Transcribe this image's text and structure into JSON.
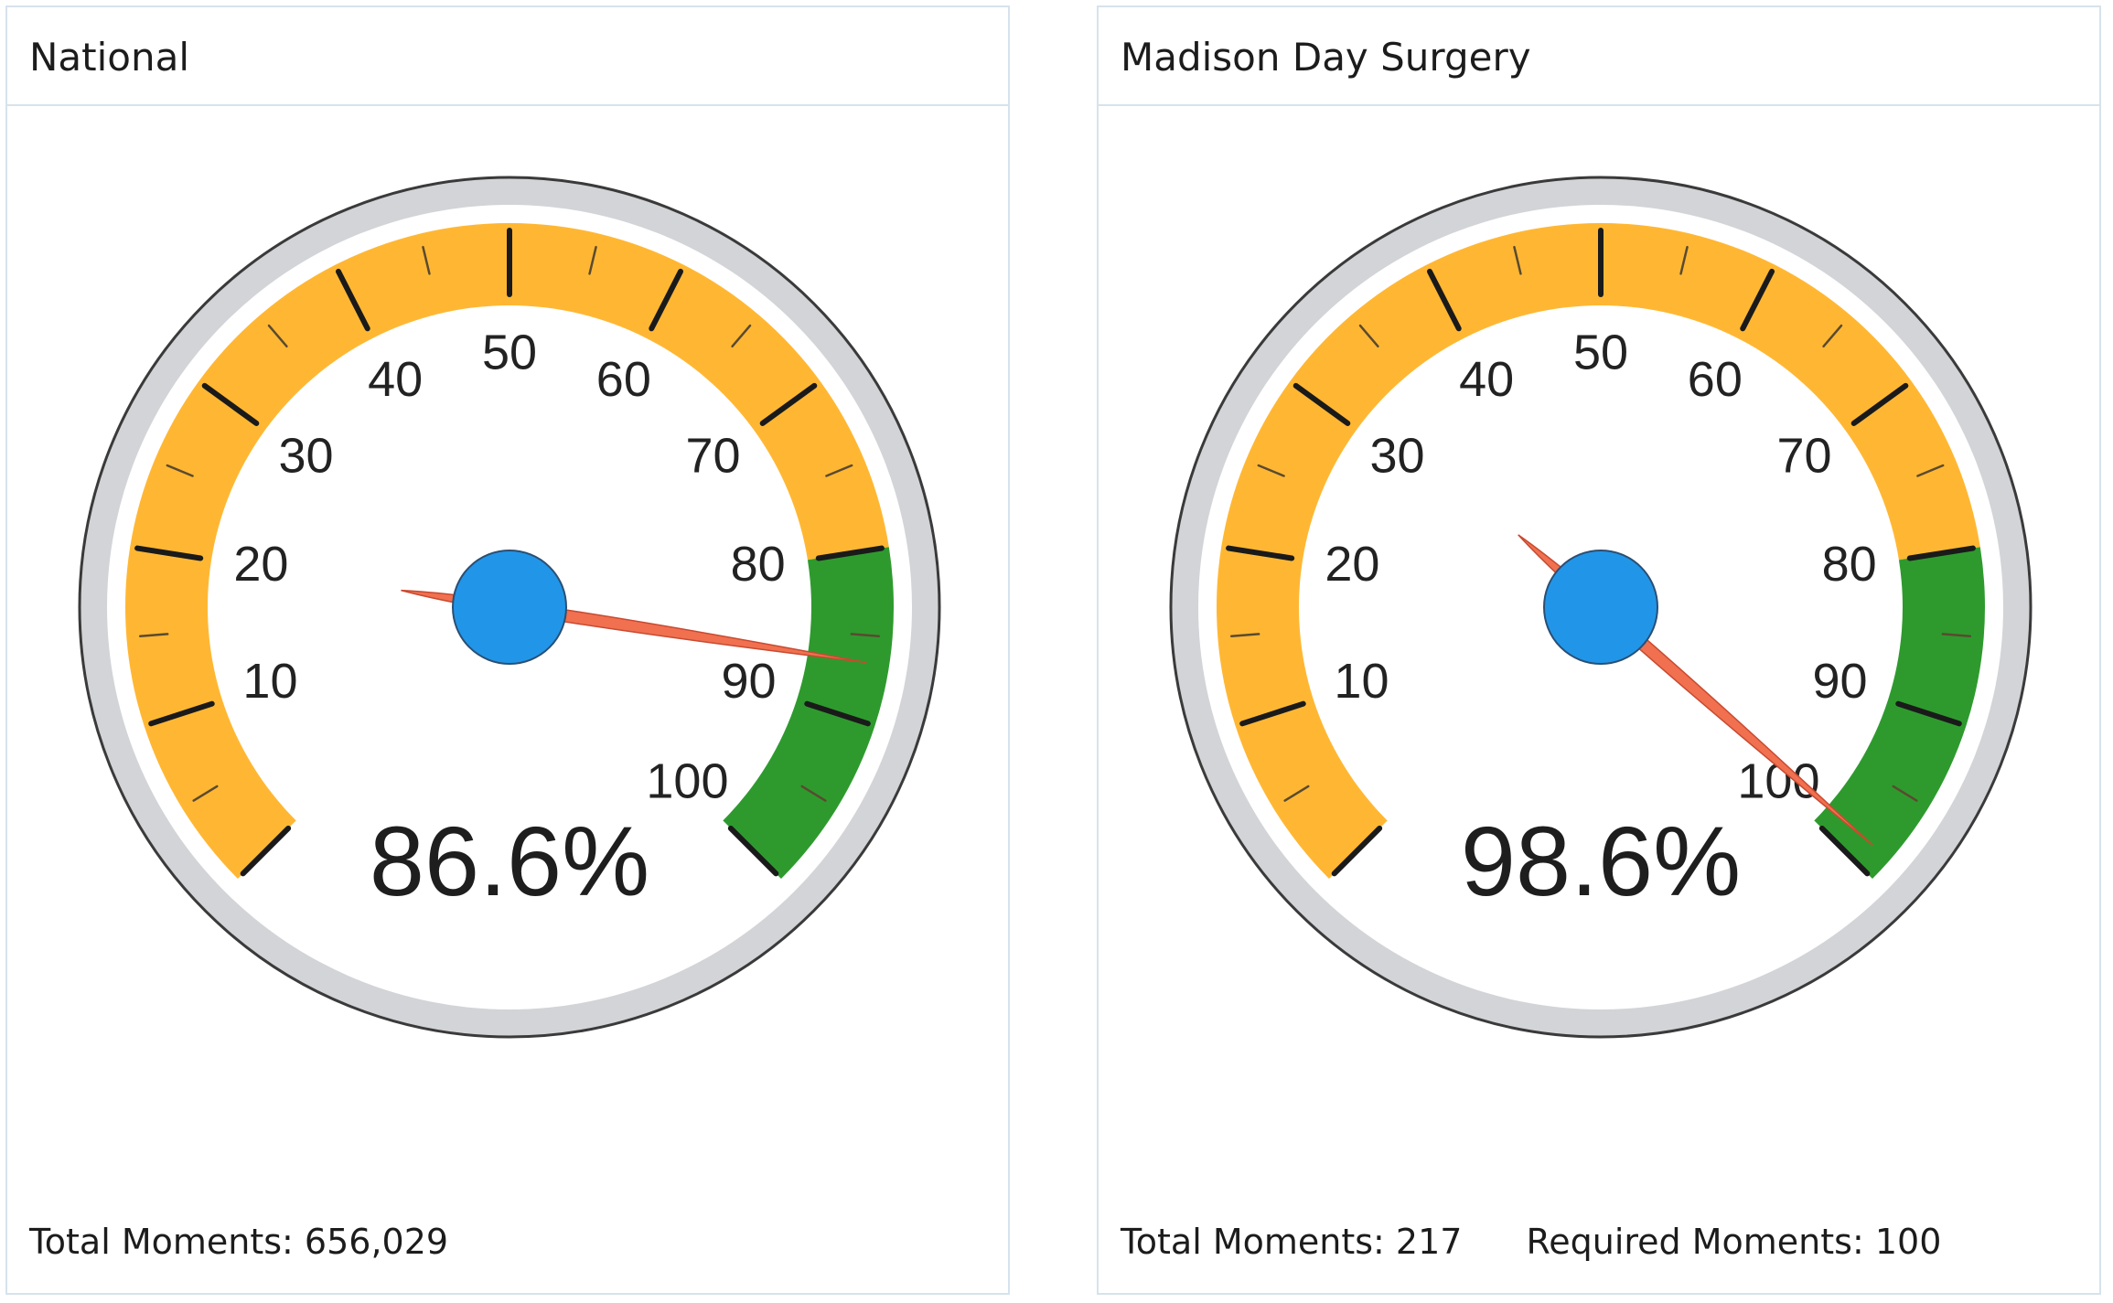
{
  "colors": {
    "warning_band": "#ffb733",
    "target_band": "#2e9a2e",
    "bezel": "#d2d4d7",
    "face": "#ffffff",
    "needle": "#f07050",
    "hub": "#2196e8"
  },
  "panels": [
    {
      "title": "National",
      "value_label": "86.6%",
      "footer": [
        {
          "label": "Total Moments: 656,029"
        }
      ]
    },
    {
      "title": "Madison Day Surgery",
      "value_label": "98.6%",
      "footer": [
        {
          "label": "Total Moments: 217"
        },
        {
          "label": "Required Moments: 100"
        }
      ]
    }
  ],
  "chart_data": [
    {
      "type": "gauge",
      "title": "National",
      "value": 86.6,
      "value_label": "86.6%",
      "range": [
        0,
        100
      ],
      "tick_labels": [
        "10",
        "20",
        "30",
        "40",
        "50",
        "60",
        "70",
        "80",
        "90",
        "100"
      ],
      "bands": [
        {
          "from": 0,
          "to": 80,
          "color": "#ffb733"
        },
        {
          "from": 80,
          "to": 100,
          "color": "#2e9a2e"
        }
      ]
    },
    {
      "type": "gauge",
      "title": "Madison Day Surgery",
      "value": 98.6,
      "value_label": "98.6%",
      "range": [
        0,
        100
      ],
      "tick_labels": [
        "10",
        "20",
        "30",
        "40",
        "50",
        "60",
        "70",
        "80",
        "90",
        "100"
      ],
      "bands": [
        {
          "from": 0,
          "to": 80,
          "color": "#ffb733"
        },
        {
          "from": 80,
          "to": 100,
          "color": "#2e9a2e"
        }
      ]
    }
  ]
}
